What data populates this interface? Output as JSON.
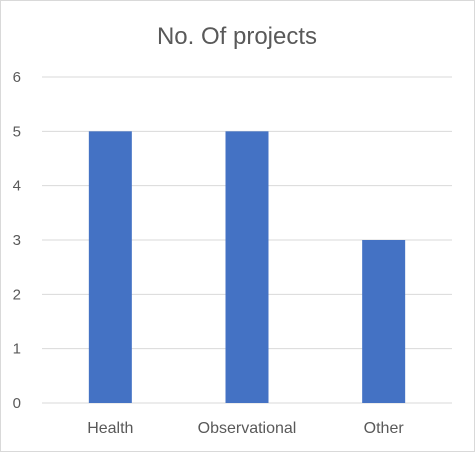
{
  "chart_data": {
    "type": "bar",
    "title": "No. Of projects",
    "categories": [
      "Health",
      "Observational",
      "Other"
    ],
    "values": [
      5,
      5,
      3
    ],
    "ylim": [
      0,
      6
    ],
    "yticks": [
      "0",
      "1",
      "2",
      "3",
      "4",
      "5",
      "6"
    ],
    "grid": true,
    "legend": "none",
    "colors": {
      "bar": "#4472C4",
      "grid": "#d9d9d9",
      "text": "#595959"
    }
  }
}
